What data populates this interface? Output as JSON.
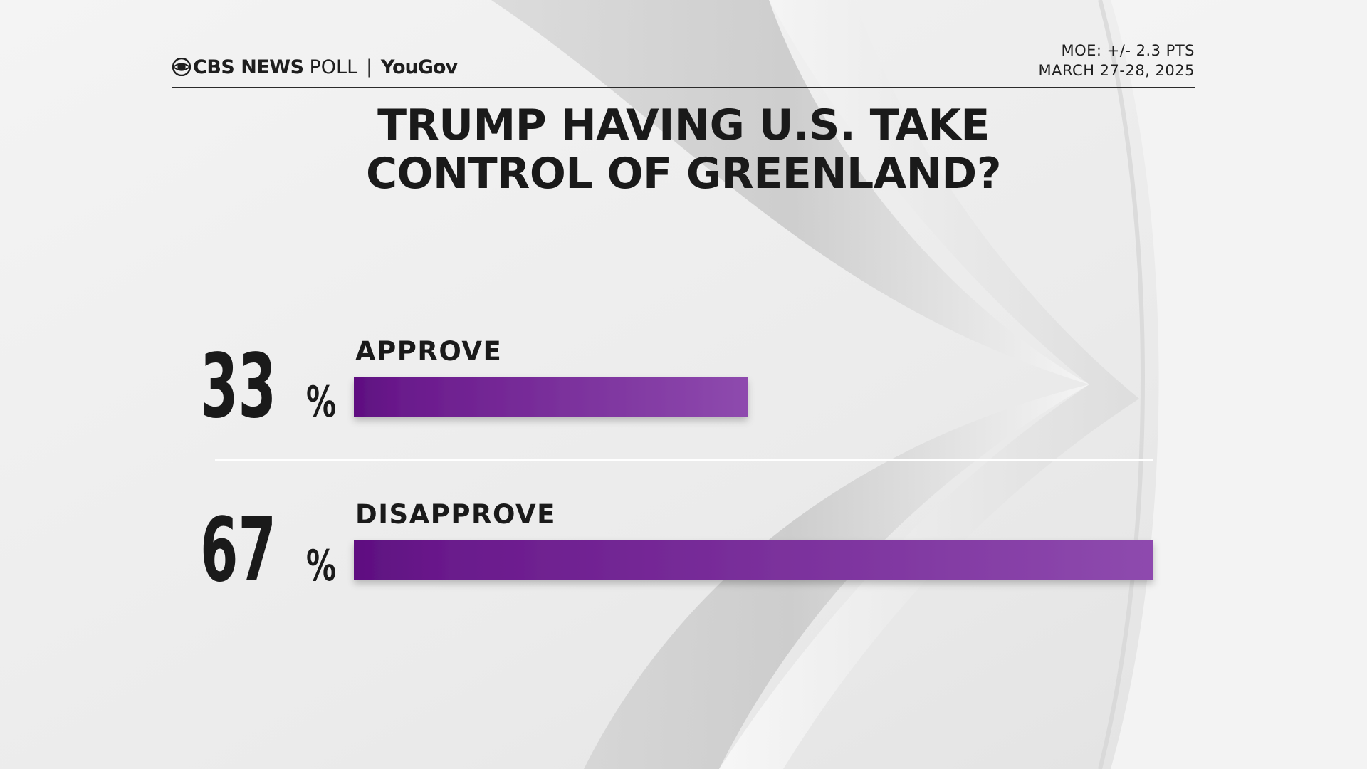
{
  "header": {
    "brand": "CBS NEWS",
    "poll": "POLL",
    "separator": "|",
    "partner": "YouGov",
    "moe": "MOE: +/- 2.3 PTS",
    "date": "MARCH 27-28, 2025"
  },
  "chart_data": {
    "type": "bar",
    "title_lines": [
      "TRUMP HAVING U.S. TAKE",
      "CONTROL OF GREENLAND?"
    ],
    "categories": [
      "APPROVE",
      "DISAPPROVE"
    ],
    "values": [
      33,
      67
    ],
    "value_suffix": "%",
    "xlim": [
      0,
      67
    ],
    "xlabel": "",
    "ylabel": "",
    "grid": false,
    "legend": "none",
    "colors": {
      "bar_start": "#5e0f80",
      "bar_end": "#8e4aae",
      "text": "#1a1a1a"
    }
  }
}
